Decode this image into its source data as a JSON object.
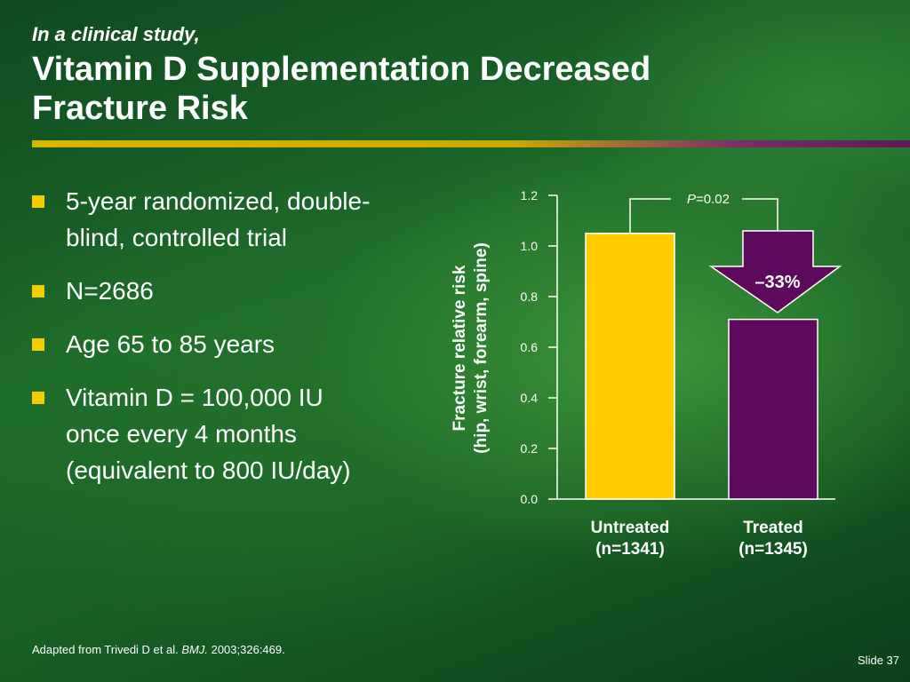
{
  "slide": {
    "kicker": "In a clinical study,",
    "title_line1": "Vitamin D Supplementation Decreased",
    "title_line2": "Fracture Risk",
    "footnote_prefix": "Adapted from Trivedi D et al. ",
    "footnote_journal": "BMJ.",
    "footnote_suffix": " 2003;326:469.",
    "slide_number": "Slide 37"
  },
  "bullets": [
    {
      "lines": [
        "5-year randomized, double-",
        "blind, controlled trial"
      ]
    },
    {
      "lines": [
        "N=2686"
      ]
    },
    {
      "lines": [
        "Age 65 to 85 years"
      ]
    },
    {
      "lines": [
        "Vitamin D = 100,000 IU",
        "once every 4 months",
        "(equivalent to 800 IU/day)"
      ]
    }
  ],
  "colors": {
    "bullet": "#f5cc00",
    "untreated_bar": "#ffcc00",
    "treated_bar": "#5e0a5c",
    "arrow": "#5e0a5c"
  },
  "chart_data": {
    "type": "bar",
    "ylabel_line1": "Fracture relative risk",
    "ylabel_line2": "(hip, wrist, forearm, spine)",
    "ylim": [
      0,
      1.2
    ],
    "yticks": [
      "0.0",
      "0.2",
      "0.4",
      "0.6",
      "0.8",
      "1.0",
      "1.2"
    ],
    "categories": [
      {
        "line1": "Untreated",
        "line2": "(n=1341)"
      },
      {
        "line1": "Treated",
        "line2": "(n=1345)"
      }
    ],
    "values": [
      1.05,
      0.71
    ],
    "annotations": {
      "p_label": "P",
      "p_value": "=0.02",
      "reduction": "–33%"
    }
  }
}
